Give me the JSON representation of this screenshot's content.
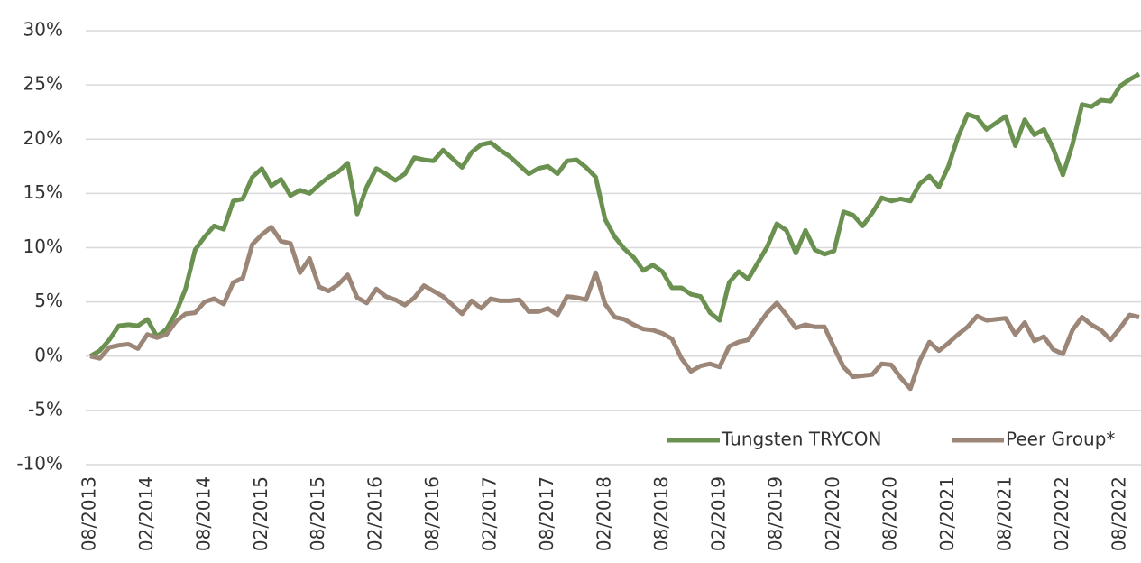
{
  "chart_data": {
    "type": "line",
    "categories": [
      "08/2013",
      null,
      null,
      null,
      null,
      null,
      "02/2014",
      null,
      null,
      null,
      null,
      null,
      "08/2014",
      null,
      null,
      null,
      null,
      null,
      "02/2015",
      null,
      null,
      null,
      null,
      null,
      "08/2015",
      null,
      null,
      null,
      null,
      null,
      "02/2016",
      null,
      null,
      null,
      null,
      null,
      "08/2016",
      null,
      null,
      null,
      null,
      null,
      "02/2017",
      null,
      null,
      null,
      null,
      null,
      "08/2017",
      null,
      null,
      null,
      null,
      null,
      "02/2018",
      null,
      null,
      null,
      null,
      null,
      "08/2018",
      null,
      null,
      null,
      null,
      null,
      "02/2019",
      null,
      null,
      null,
      null,
      null,
      "08/2019",
      null,
      null,
      null,
      null,
      null,
      "02/2020",
      null,
      null,
      null,
      null,
      null,
      "08/2020",
      null,
      null,
      null,
      null,
      null,
      "02/2021",
      null,
      null,
      null,
      null,
      null,
      "08/2021",
      null,
      null,
      null,
      null,
      null,
      "02/2022",
      null,
      null,
      null,
      null,
      null,
      "08/2022",
      null,
      null
    ],
    "series": [
      {
        "name": "Tungsten TRYCON",
        "color": "#6b9150",
        "values": [
          0,
          0.5,
          1.5,
          2.8,
          2.9,
          2.8,
          3.4,
          1.8,
          2.5,
          4,
          6.2,
          9.8,
          11,
          12,
          11.7,
          14.3,
          14.5,
          16.5,
          17.3,
          15.7,
          16.3,
          14.8,
          15.3,
          15,
          15.8,
          16.5,
          17,
          17.8,
          13.1,
          15.6,
          17.3,
          16.8,
          16.2,
          16.8,
          18.3,
          18.1,
          18,
          19,
          18.2,
          17.4,
          18.8,
          19.5,
          19.7,
          19,
          18.4,
          17.6,
          16.8,
          17.3,
          17.5,
          16.8,
          18,
          18.1,
          17.4,
          16.5,
          12.6,
          11,
          9.9,
          9.1,
          7.9,
          8.4,
          7.8,
          6.3,
          6.3,
          5.7,
          5.5,
          4,
          3.3,
          6.8,
          7.8,
          7.1,
          8.6,
          10.1,
          12.2,
          11.6,
          9.5,
          11.6,
          9.8,
          9.4,
          9.7,
          13.3,
          13,
          12,
          13.2,
          14.6,
          14.3,
          14.5,
          14.3,
          15.9,
          16.6,
          15.6,
          17.5,
          20.2,
          22.3,
          22,
          20.9,
          21.5,
          22.1,
          19.4,
          21.8,
          20.4,
          20.9,
          19.1,
          16.7,
          19.5,
          23.2,
          23,
          23.6,
          23.5,
          24.9,
          25.5,
          26
        ]
      },
      {
        "name": "Peer Group*",
        "color": "#9c8677",
        "values": [
          0,
          -0.2,
          0.8,
          1,
          1.1,
          0.7,
          2,
          1.7,
          2,
          3.2,
          3.9,
          4,
          5,
          5.3,
          4.8,
          6.8,
          7.2,
          10.3,
          11.2,
          11.9,
          10.6,
          10.4,
          7.7,
          9,
          6.4,
          6,
          6.6,
          7.5,
          5.4,
          4.9,
          6.2,
          5.5,
          5.2,
          4.7,
          5.4,
          6.5,
          6,
          5.5,
          4.7,
          3.9,
          5.1,
          4.4,
          5.3,
          5.1,
          5.1,
          5.2,
          4.1,
          4.1,
          4.4,
          3.8,
          5.5,
          5.4,
          5.2,
          7.7,
          4.8,
          3.6,
          3.4,
          2.9,
          2.5,
          2.4,
          2.1,
          1.6,
          -0.2,
          -1.4,
          -0.9,
          -0.7,
          -1,
          0.9,
          1.3,
          1.5,
          2.8,
          4,
          4.9,
          3.8,
          2.6,
          2.9,
          2.7,
          2.7,
          0.8,
          -1,
          -1.9,
          -1.8,
          -1.7,
          -0.7,
          -0.8,
          -2,
          -3,
          -0.4,
          1.3,
          0.5,
          1.2,
          2,
          2.7,
          3.7,
          3.3,
          3.4,
          3.5,
          2,
          3.1,
          1.4,
          1.8,
          0.6,
          0.2,
          2.4,
          3.6,
          2.9,
          2.4,
          1.5,
          2.6,
          3.8,
          3.6
        ]
      }
    ],
    "ylim": [
      -10,
      30
    ],
    "yticks": [
      {
        "value": -10,
        "label": "-10%"
      },
      {
        "value": -5,
        "label": "-5%"
      },
      {
        "value": 0,
        "label": "0%"
      },
      {
        "value": 5,
        "label": "5%"
      },
      {
        "value": 10,
        "label": "10%"
      },
      {
        "value": 15,
        "label": "15%"
      },
      {
        "value": 20,
        "label": "20%"
      },
      {
        "value": 25,
        "label": "25%"
      },
      {
        "value": 30,
        "label": "30%"
      }
    ],
    "grid": true,
    "legend": "lower right"
  }
}
